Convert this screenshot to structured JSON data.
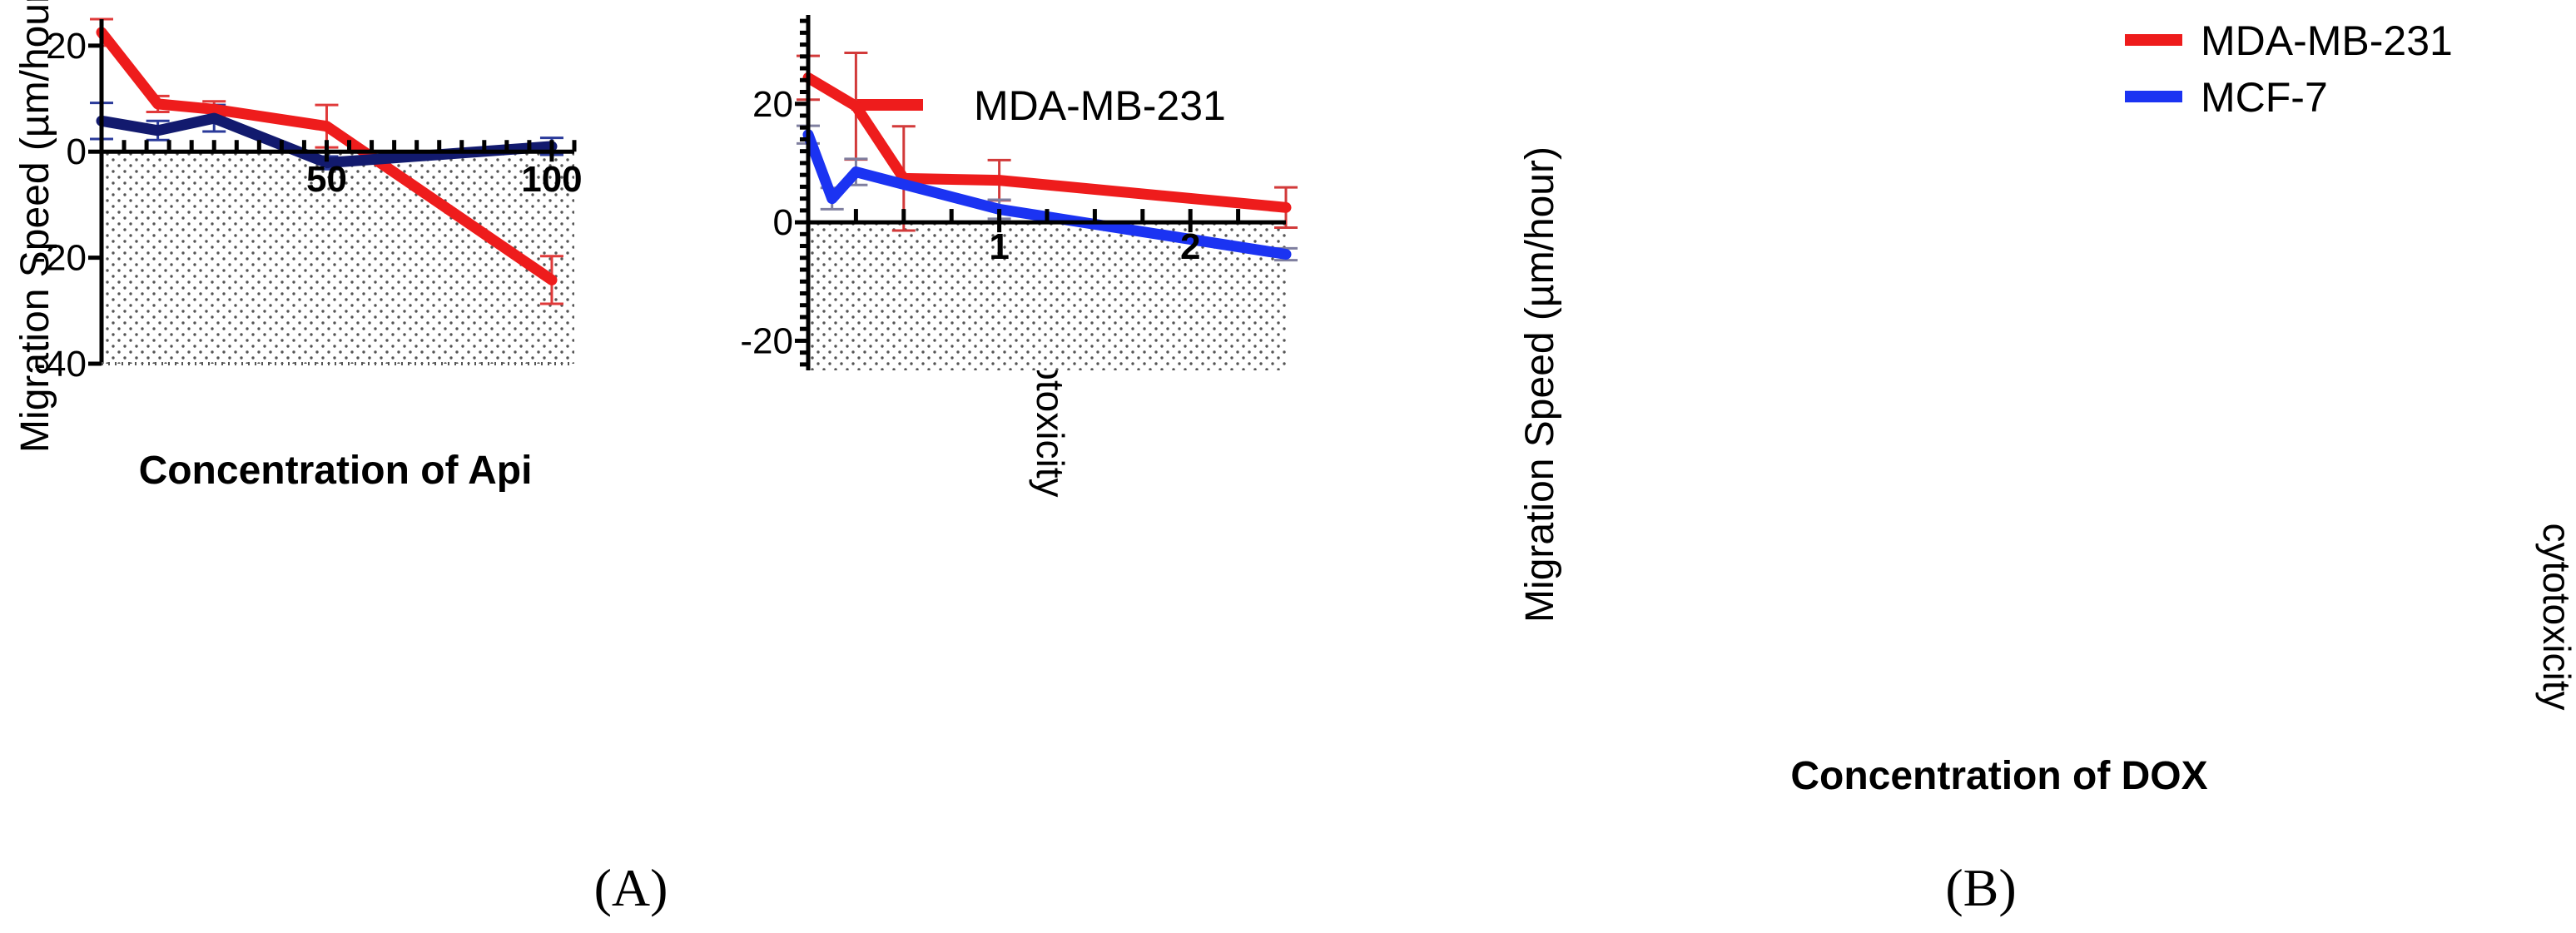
{
  "chart_data": [
    {
      "type": "line",
      "panel_label": "(A)",
      "xlabel": "Concentration of Api",
      "ylabel": "Migration Speed (µm/hour)",
      "xlim": [
        0,
        105
      ],
      "ylim": [
        -40,
        25
      ],
      "xticks_major": [
        50,
        100
      ],
      "xticks_minor": [
        5,
        10,
        15,
        20,
        25,
        30,
        35,
        40,
        45,
        55,
        60,
        65,
        70,
        75,
        80,
        85,
        90,
        95,
        105
      ],
      "yticks": [
        20,
        0,
        -20,
        -40
      ],
      "shaded_region": "below zero",
      "annotation": "cytotoxicity",
      "legend_position": "top-right",
      "series": [
        {
          "name": "MDA-MB-231",
          "color": "#ee1c1c",
          "x": [
            0,
            12.5,
            25,
            50,
            100
          ],
          "y": [
            22.5,
            9,
            8,
            4.8,
            -24.2
          ],
          "err": [
            2.5,
            1.5,
            1.5,
            4,
            4.5
          ],
          "err_color": "#e03a3a"
        },
        {
          "name": "MCF-7",
          "color": "#121a6e",
          "x": [
            0,
            12.5,
            25,
            50,
            100
          ],
          "y": [
            5.8,
            4,
            6.3,
            -2.1,
            1
          ],
          "err": [
            3.4,
            1.8,
            2.5,
            1.2,
            1.6
          ],
          "err_color": "#2a3a9a"
        }
      ]
    },
    {
      "type": "line",
      "panel_label": "(B)",
      "xlabel": "Concentration of DOX",
      "ylabel": "Migration Speed (µm/hour)",
      "xlim": [
        0,
        2.5
      ],
      "ylim": [
        -25,
        35
      ],
      "xticks_major": [
        1,
        2
      ],
      "xticks_minor": [
        0.25,
        0.5,
        0.75,
        1.25,
        1.5,
        1.75,
        2.25
      ],
      "yticks": [
        20,
        0,
        -20
      ],
      "y_minor_step": 2,
      "shaded_region": "below zero",
      "annotation": "cytotoxicity",
      "legend_position": "top-right",
      "series": [
        {
          "name": "MDA-MB-231",
          "color": "#ee1c1c",
          "x": [
            0,
            0.25,
            0.5,
            1,
            2.5
          ],
          "y": [
            24.4,
            19.6,
            7.4,
            7.1,
            2.5
          ],
          "err": [
            3.7,
            9,
            8.8,
            3.4,
            3.4
          ],
          "err_color": "#d23a3a"
        },
        {
          "name": "MCF-7",
          "color": "#1b33f2",
          "x": [
            0,
            0.125,
            0.25,
            1,
            2.5
          ],
          "y": [
            14.8,
            4,
            8.5,
            2.2,
            -5.4
          ],
          "err": [
            1.5,
            1.8,
            2.2,
            1.6,
            1
          ],
          "err_color": "#7f7f9f"
        }
      ]
    }
  ]
}
